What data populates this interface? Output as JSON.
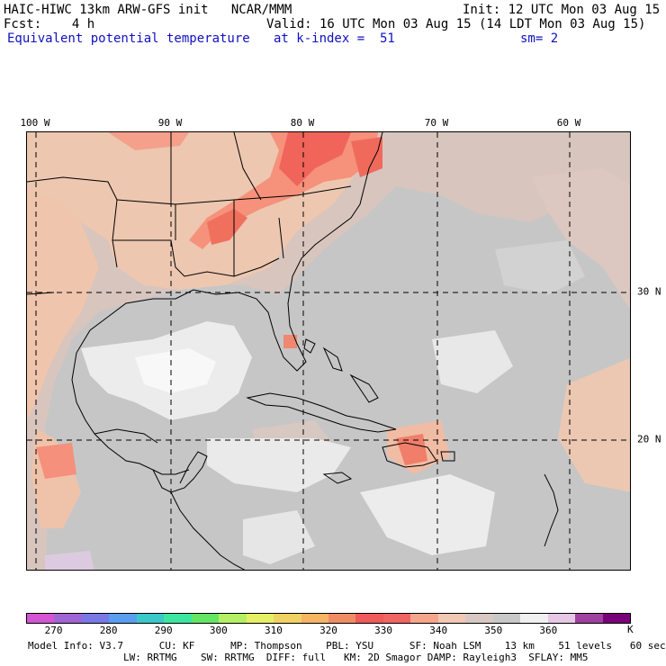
{
  "header": {
    "line1_left": "HAIC-HIWC 13km ARW-GFS init   NCAR/MMM",
    "line1_right": "Init: 12 UTC Mon 03 Aug 15",
    "line2_left": "Fcst:    4 h",
    "line2_right": "Valid: 16 UTC Mon 03 Aug 15 (14 LDT Mon 03 Aug 15)",
    "line3_field": "Equivalent potential temperature",
    "line3_level": "at k-index =  51",
    "line3_smooth": "sm= 2"
  },
  "map": {
    "lon_labels": [
      "100 W",
      "90 W",
      "80 W",
      "70 W",
      "60 W"
    ],
    "lat_labels": [
      "30 N",
      "20 N"
    ],
    "background_color": "#c4c4c4",
    "grid": "dashed"
  },
  "colorbar": {
    "colors": [
      "#d455d4",
      "#a064d4",
      "#7878e6",
      "#5a9ef0",
      "#3cc8c8",
      "#3ce6a0",
      "#64e664",
      "#b4f064",
      "#e6f064",
      "#f0d264",
      "#f6b464",
      "#f08c64",
      "#f05a5a",
      "#f06464",
      "#f5a58c",
      "#f0c8b4",
      "#d7c8c4",
      "#c8c8c8",
      "#f0f0f0",
      "#e6c8e6",
      "#a040a0",
      "#780078"
    ],
    "ticks": [
      "270",
      "280",
      "290",
      "300",
      "310",
      "320",
      "330",
      "340",
      "350",
      "360"
    ],
    "unit": "K"
  },
  "footer": {
    "line1": "Model Info: V3.7      CU: KF      MP: Thompson    PBL: YSU      SF: Noah LSM    13 km    51 levels   60 sec",
    "line2": "                LW: RRTMG    SW: RRTMG  DIFF: full   KM: 2D Smagor DAMP: Rayleigh3  SFLAY: MM5"
  }
}
